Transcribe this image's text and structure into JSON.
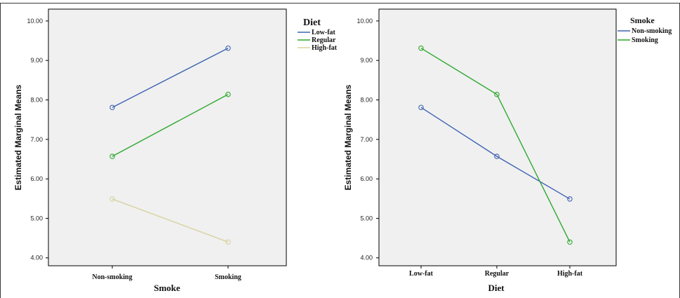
{
  "chart_data": [
    {
      "type": "line",
      "xlabel": "Smoke",
      "ylabel": "Estimated Marginal Means",
      "categories": [
        "Non-smoking",
        "Smoking"
      ],
      "ylim": [
        3.8,
        10.3
      ],
      "yticks": [
        "4.00",
        "5.00",
        "6.00",
        "7.00",
        "8.00",
        "9.00",
        "10.00"
      ],
      "legend_title": "Diet",
      "legend_position": "right",
      "series": [
        {
          "name": "Low-fat",
          "color": "#3f62b4",
          "values": [
            7.81,
            9.31
          ]
        },
        {
          "name": "Regular",
          "color": "#2ea82e",
          "values": [
            6.57,
            8.14
          ]
        },
        {
          "name": "High-fat",
          "color": "#d7d3a0",
          "values": [
            5.49,
            4.4
          ]
        }
      ]
    },
    {
      "type": "line",
      "xlabel": "Diet",
      "ylabel": "Estimated Marginal Means",
      "categories": [
        "Low-fat",
        "Regular",
        "High-fat"
      ],
      "ylim": [
        3.8,
        10.3
      ],
      "yticks": [
        "4.00",
        "5.00",
        "6.00",
        "7.00",
        "8.00",
        "9.00",
        "10.00"
      ],
      "legend_title": "Smoke",
      "legend_position": "right",
      "series": [
        {
          "name": "Non-smoking",
          "color": "#3f62b4",
          "values": [
            7.81,
            6.57,
            5.49
          ]
        },
        {
          "name": "Smoking",
          "color": "#2ea82e",
          "values": [
            9.31,
            8.14,
            4.4
          ]
        }
      ]
    }
  ]
}
